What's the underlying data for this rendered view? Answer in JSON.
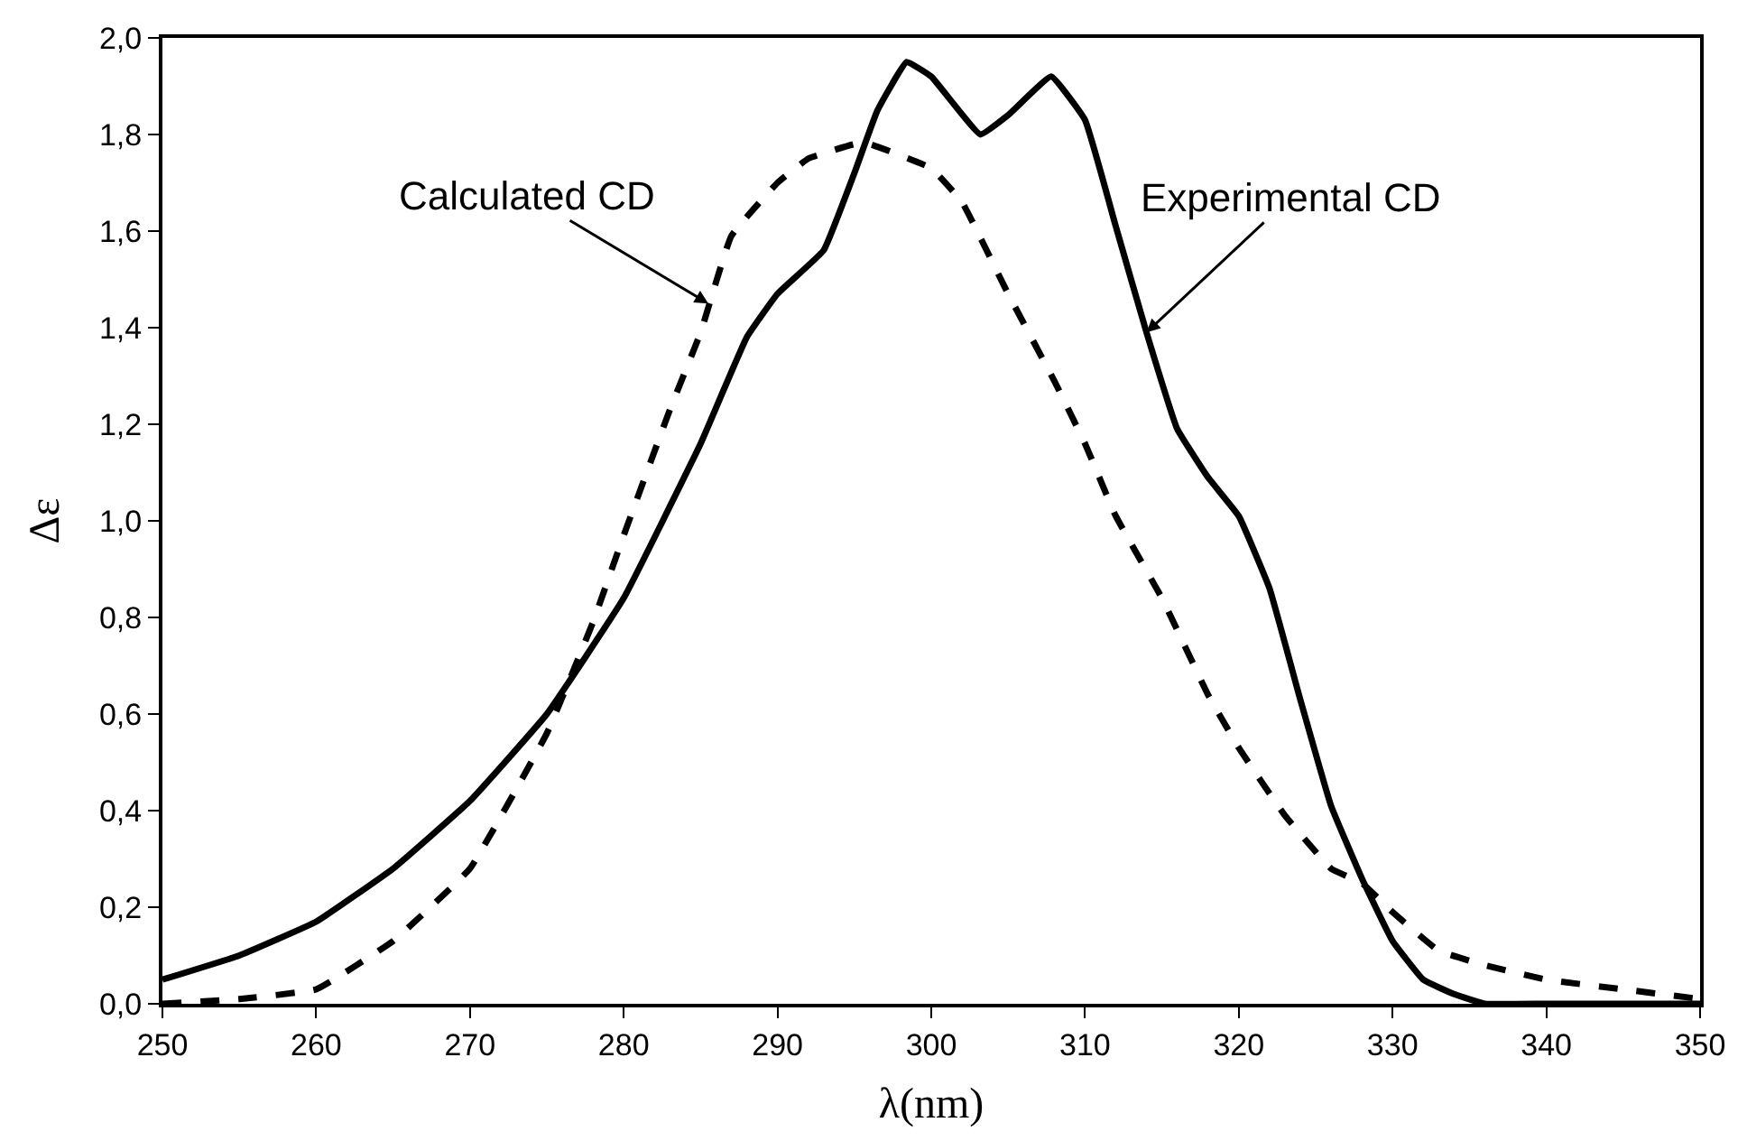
{
  "chart_data": {
    "type": "line",
    "xlabel": "λ(nm)",
    "ylabel": "Δε",
    "series": [
      {
        "color": "#000000",
        "line_style": "solid",
        "x": [
          250,
          255,
          260,
          265,
          270,
          275,
          280,
          285,
          288,
          290,
          293,
          295,
          296.5,
          298.4,
          300,
          303.2,
          305,
          307.8,
          310,
          312,
          314,
          316,
          318,
          320,
          322,
          324,
          326,
          328,
          330,
          332,
          334,
          336,
          340,
          350
        ],
        "values": [
          0.05,
          0.1,
          0.17,
          0.28,
          0.42,
          0.6,
          0.84,
          1.16,
          1.38,
          1.47,
          1.56,
          1.72,
          1.85,
          1.95,
          1.92,
          1.8,
          1.84,
          1.92,
          1.83,
          1.61,
          1.39,
          1.19,
          1.09,
          1.01,
          0.86,
          0.63,
          0.41,
          0.26,
          0.13,
          0.05,
          0.02,
          0.0,
          0.0,
          0.0
        ]
      },
      {
        "color": "#000000",
        "line_style": "dashed",
        "x": [
          250,
          255,
          260,
          265,
          270,
          275,
          278,
          280,
          283,
          285,
          287,
          290,
          292,
          295,
          296,
          300,
          302,
          305,
          308,
          310,
          312,
          315,
          318,
          320,
          323,
          326,
          328,
          330,
          333,
          336,
          340,
          345,
          350
        ],
        "values": [
          0.0,
          0.01,
          0.03,
          0.13,
          0.28,
          0.56,
          0.79,
          0.97,
          1.23,
          1.39,
          1.59,
          1.7,
          1.75,
          1.78,
          1.78,
          1.73,
          1.66,
          1.47,
          1.29,
          1.16,
          1.01,
          0.84,
          0.64,
          0.53,
          0.39,
          0.28,
          0.25,
          0.19,
          0.11,
          0.08,
          0.05,
          0.03,
          0.01
        ]
      }
    ],
    "annotations": [
      {
        "text": "Calculated CD",
        "x": 285.5,
        "y": 1.45
      },
      {
        "text": "Experimental CD",
        "x": 314,
        "y": 1.39
      }
    ],
    "xlim": [
      250,
      350
    ],
    "xticks": [
      250,
      260,
      270,
      280,
      290,
      300,
      310,
      320,
      330,
      340,
      350
    ],
    "ylim": [
      0,
      2
    ],
    "yticks": [
      {
        "value": 0,
        "label": "0,0"
      },
      {
        "value": 0.2,
        "label": "0,2"
      },
      {
        "value": 0.4,
        "label": "0,4"
      },
      {
        "value": 0.6,
        "label": "0,6"
      },
      {
        "value": 0.8,
        "label": "0,8"
      },
      {
        "value": 1.0,
        "label": "1,0"
      },
      {
        "value": 1.2,
        "label": "1,2"
      },
      {
        "value": 1.4,
        "label": "1,4"
      },
      {
        "value": 1.6,
        "label": "1,6"
      },
      {
        "value": 1.8,
        "label": "1,8"
      },
      {
        "value": 2.0,
        "label": "2,0"
      }
    ]
  }
}
